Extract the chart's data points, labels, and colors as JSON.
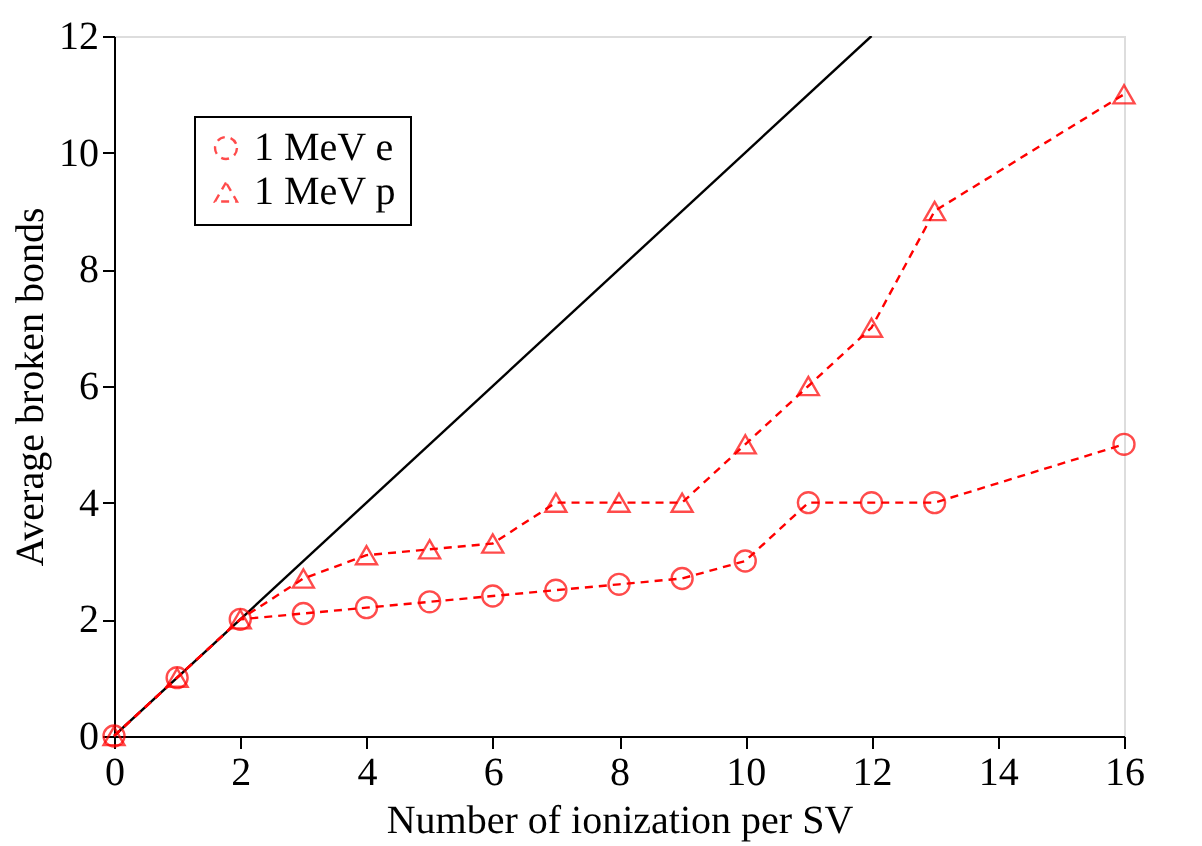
{
  "chart_data": {
    "type": "line",
    "xlabel": "Number of ionization per SV",
    "ylabel": "Average broken bonds",
    "xlim": [
      0,
      16
    ],
    "ylim": [
      0,
      12
    ],
    "xticks": [
      0,
      2,
      4,
      6,
      8,
      10,
      12,
      14,
      16
    ],
    "yticks": [
      0,
      2,
      4,
      6,
      8,
      10,
      12
    ],
    "grid": false,
    "legend": "top left",
    "series": [
      {
        "name": "1 MeV e",
        "color": "#ff0000",
        "marker": "circle",
        "line_style": "dashed",
        "x": [
          0,
          1,
          2,
          3,
          4,
          5,
          6,
          7,
          8,
          9,
          10,
          11,
          12,
          13,
          16
        ],
        "values": [
          0,
          1,
          2,
          2.1,
          2.2,
          2.3,
          2.4,
          2.5,
          2.6,
          2.7,
          3,
          4,
          4,
          4,
          5
        ]
      },
      {
        "name": "1 MeV p",
        "color": "#ff0000",
        "marker": "triangle",
        "line_style": "dashed",
        "x": [
          0,
          1,
          2,
          3,
          4,
          5,
          6,
          7,
          8,
          9,
          10,
          11,
          12,
          13,
          16
        ],
        "values": [
          0,
          1,
          2,
          2.7,
          3.1,
          3.2,
          3.3,
          4,
          4,
          4,
          5,
          6,
          7,
          9,
          11
        ]
      },
      {
        "color": "#000000",
        "marker": "none",
        "line_style": "solid",
        "x": [
          0,
          12
        ],
        "values": [
          0,
          12
        ]
      }
    ]
  }
}
